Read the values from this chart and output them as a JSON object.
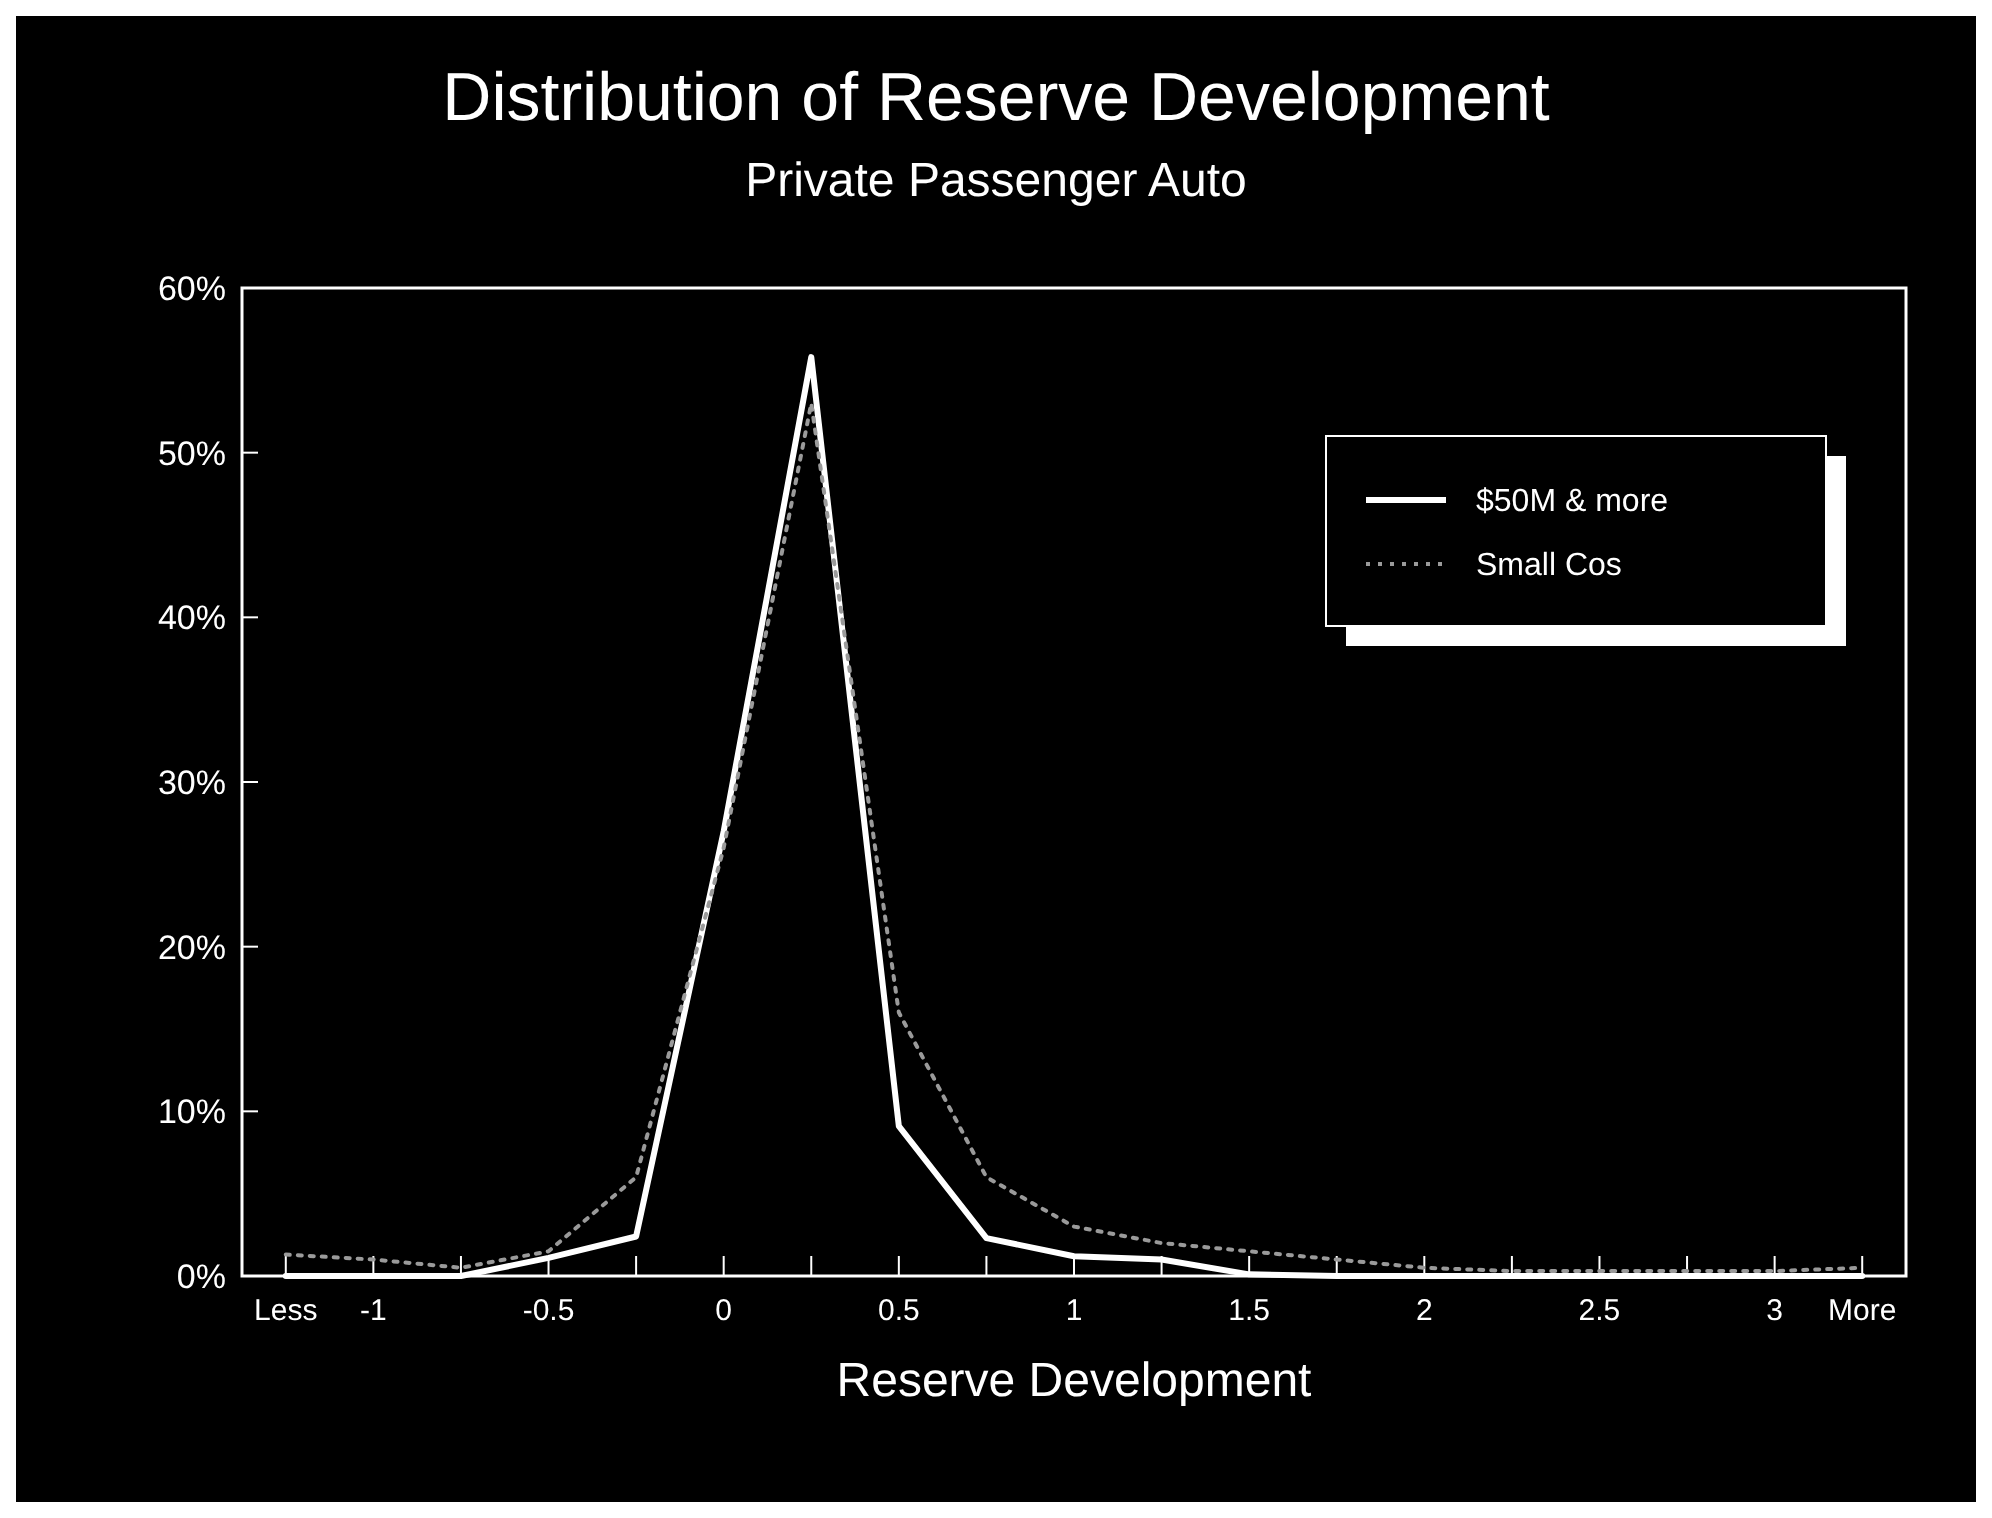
{
  "chart_data": {
    "type": "line",
    "title": "Distribution of Reserve Development",
    "subtitle": "Private Passenger Auto",
    "xlabel": "Reserve Development",
    "categories": [
      "Less",
      "-1",
      null,
      "-0.5",
      null,
      "0",
      null,
      "0.5",
      null,
      "1",
      null,
      "1.5",
      null,
      "2",
      null,
      "2.5",
      null,
      "3",
      "More"
    ],
    "series": [
      {
        "name": "$50M & more",
        "color": "#ffffff",
        "line_style": "solid",
        "values": [
          0,
          0,
          0,
          1.1,
          2.4,
          27,
          55.8,
          9.1,
          2.3,
          1.2,
          1.0,
          0.1,
          0,
          0,
          0,
          0,
          0,
          0,
          0
        ]
      },
      {
        "name": "Small Cos",
        "color": "#9a9a9a",
        "line_style": "dotted",
        "values": [
          1.3,
          1.0,
          0.5,
          1.5,
          6,
          26,
          53,
          16,
          6,
          3,
          2,
          1.5,
          1.0,
          0.5,
          0.3,
          0.3,
          0.3,
          0.3,
          0.5
        ]
      }
    ],
    "ylim": [
      0,
      60
    ],
    "yticks": [
      {
        "value": 0,
        "label": "0%"
      },
      {
        "value": 10,
        "label": "10%"
      },
      {
        "value": 20,
        "label": "20%"
      },
      {
        "value": 30,
        "label": "30%"
      },
      {
        "value": 40,
        "label": "40%"
      },
      {
        "value": 50,
        "label": "50%"
      },
      {
        "value": 60,
        "label": "60%"
      }
    ],
    "legend": "right",
    "grid": false
  }
}
